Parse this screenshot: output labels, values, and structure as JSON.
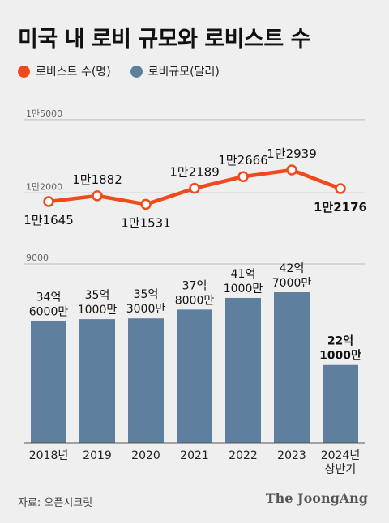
{
  "title": "미국 내 로비 규모와 로비스트 수",
  "legend": [
    {
      "label": "로비스트 수(명)",
      "color": "#f04a1c"
    },
    {
      "label": "로비규모(달러)",
      "color": "#5f7f9e"
    }
  ],
  "chart_data": {
    "type": "bar",
    "categories": [
      "2018년",
      "2019",
      "2020",
      "2021",
      "2022",
      "2023",
      "2024년\n상반기"
    ],
    "line_series": {
      "name": "로비스트 수(명)",
      "values": [
        11645,
        11882,
        11531,
        12189,
        12666,
        12939,
        12176
      ],
      "labels": [
        "1만1645",
        "1만1882",
        "1만1531",
        "1만2189",
        "1만2666",
        "1만2939",
        "1만2176"
      ],
      "color": "#f04a1c",
      "gridlines": [
        {
          "value": 15000,
          "label": "1만5000"
        },
        {
          "value": 12000,
          "label": "1만2000"
        }
      ]
    },
    "bar_series": {
      "name": "로비규모(달러)",
      "values": [
        3460000000,
        3510000000,
        3530000000,
        3780000000,
        4110000000,
        4270000000,
        2210000000
      ],
      "labels": [
        "34억\n6000만",
        "35억\n1000만",
        "35억\n3000만",
        "37억\n8000만",
        "41억\n1000만",
        "42억\n7000만",
        "22억\n1000만"
      ],
      "color": "#5f7f9e",
      "gridlines": [
        {
          "value": 9000000000,
          "label": "9000"
        }
      ]
    }
  },
  "source": "자료: 오픈시크릿",
  "brand": "The JoongAng"
}
